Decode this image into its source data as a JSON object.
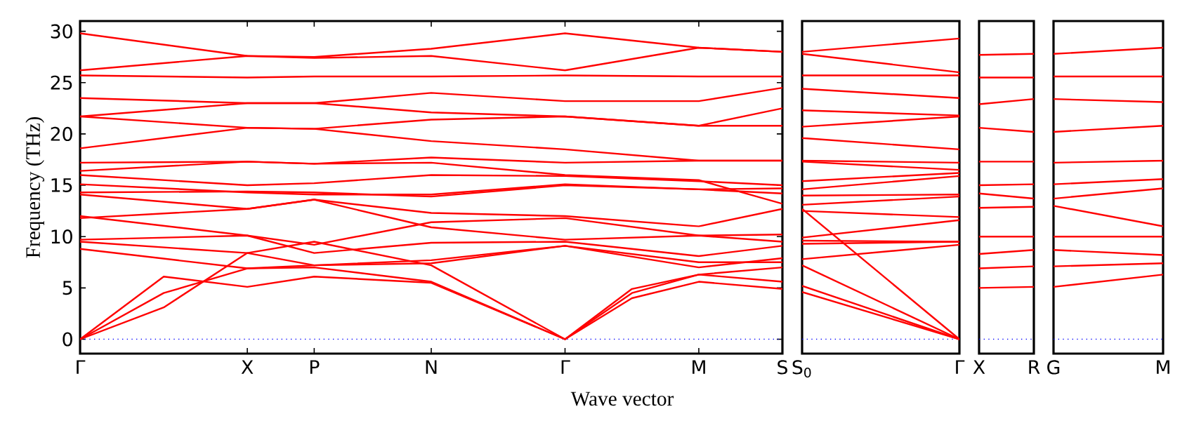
{
  "chart_data": [
    {
      "type": "line",
      "xlabel": "Wave vector",
      "ylabel": "Frequency (THz)",
      "ylim": [
        -1.4,
        31
      ],
      "yticks": [
        0,
        5,
        10,
        15,
        20,
        25,
        30
      ],
      "categories": [
        "Γ",
        null,
        null,
        null,
        null,
        null,
        null,
        null,
        null,
        null,
        "X",
        null,
        null,
        null,
        "P",
        null,
        null,
        null,
        null,
        null,
        null,
        "N",
        null,
        null,
        null,
        null,
        null,
        null,
        null,
        "Γ",
        null,
        null,
        null,
        null,
        null,
        null,
        null,
        "M",
        null,
        null,
        null,
        null,
        "S"
      ],
      "ref_lines": [
        {
          "axis": "y",
          "value": 0,
          "color": "#0000ff",
          "line_style": "dotted"
        }
      ],
      "series": [
        {
          "color": "#ff0000",
          "values": [
            29.8,
            null,
            null,
            null,
            null,
            null,
            null,
            null,
            null,
            null,
            27.6,
            null,
            null,
            null,
            27.5,
            null,
            null,
            null,
            null,
            null,
            null,
            28.3,
            null,
            null,
            null,
            null,
            null,
            null,
            null,
            29.8,
            null,
            null,
            null,
            null,
            null,
            null,
            null,
            28.4,
            null,
            null,
            null,
            null,
            28.0
          ]
        },
        {
          "color": "#ff0000",
          "values": [
            26.2,
            null,
            null,
            null,
            null,
            null,
            null,
            null,
            null,
            null,
            27.6,
            null,
            null,
            null,
            27.4,
            null,
            null,
            null,
            null,
            null,
            null,
            27.6,
            null,
            null,
            null,
            null,
            null,
            null,
            null,
            26.2,
            null,
            null,
            null,
            null,
            null,
            null,
            null,
            28.4,
            null,
            null,
            null,
            null,
            28.0
          ]
        },
        {
          "color": "#ff0000",
          "values": [
            25.7,
            null,
            null,
            null,
            null,
            null,
            null,
            null,
            null,
            null,
            25.5,
            null,
            null,
            null,
            25.6,
            null,
            null,
            null,
            null,
            null,
            null,
            25.6,
            null,
            null,
            null,
            null,
            null,
            null,
            null,
            25.7,
            null,
            null,
            null,
            null,
            null,
            null,
            null,
            25.6,
            null,
            null,
            null,
            null,
            25.6
          ]
        },
        {
          "color": "#ff0000",
          "values": [
            23.5,
            null,
            null,
            null,
            null,
            null,
            null,
            null,
            null,
            null,
            23.0,
            null,
            null,
            null,
            23.0,
            null,
            null,
            null,
            null,
            null,
            null,
            24.0,
            null,
            null,
            null,
            null,
            null,
            null,
            null,
            23.2,
            null,
            null,
            null,
            null,
            null,
            null,
            null,
            23.2,
            null,
            null,
            null,
            null,
            24.5
          ]
        },
        {
          "color": "#ff0000",
          "values": [
            21.7,
            null,
            null,
            null,
            null,
            null,
            null,
            null,
            null,
            null,
            23.0,
            null,
            null,
            null,
            23.0,
            null,
            null,
            null,
            null,
            null,
            null,
            22.1,
            null,
            null,
            null,
            null,
            null,
            null,
            null,
            21.7,
            null,
            null,
            null,
            null,
            null,
            null,
            null,
            20.8,
            null,
            null,
            null,
            null,
            22.5
          ]
        },
        {
          "color": "#ff0000",
          "values": [
            21.7,
            null,
            null,
            null,
            null,
            null,
            null,
            null,
            null,
            null,
            20.6,
            null,
            null,
            null,
            20.5,
            null,
            null,
            null,
            null,
            null,
            null,
            21.4,
            null,
            null,
            null,
            null,
            null,
            null,
            null,
            21.7,
            null,
            null,
            null,
            null,
            null,
            null,
            null,
            20.8,
            null,
            null,
            null,
            null,
            20.8
          ]
        },
        {
          "color": "#ff0000",
          "values": [
            18.6,
            null,
            null,
            null,
            null,
            null,
            null,
            null,
            null,
            null,
            20.6,
            null,
            null,
            null,
            20.5,
            null,
            null,
            null,
            null,
            null,
            null,
            19.3,
            null,
            null,
            null,
            null,
            null,
            null,
            null,
            18.5,
            null,
            null,
            null,
            null,
            null,
            null,
            null,
            17.4,
            null,
            null,
            null,
            null,
            17.4
          ]
        },
        {
          "color": "#ff0000",
          "values": [
            17.2,
            null,
            null,
            null,
            null,
            null,
            null,
            null,
            null,
            null,
            17.3,
            null,
            null,
            null,
            17.1,
            null,
            null,
            null,
            null,
            null,
            null,
            17.7,
            null,
            null,
            null,
            null,
            null,
            null,
            null,
            17.2,
            null,
            null,
            null,
            null,
            null,
            null,
            null,
            17.4,
            null,
            null,
            null,
            null,
            17.4
          ]
        },
        {
          "color": "#ff0000",
          "values": [
            16.4,
            null,
            null,
            null,
            null,
            null,
            null,
            null,
            null,
            null,
            17.3,
            null,
            null,
            null,
            17.1,
            null,
            null,
            null,
            null,
            null,
            null,
            17.2,
            null,
            null,
            null,
            null,
            null,
            null,
            null,
            16.0,
            null,
            null,
            null,
            null,
            null,
            null,
            null,
            15.5,
            null,
            null,
            null,
            null,
            13.2
          ]
        },
        {
          "color": "#ff0000",
          "values": [
            16.0,
            null,
            null,
            null,
            null,
            null,
            null,
            null,
            null,
            null,
            15.0,
            null,
            null,
            null,
            15.2,
            null,
            null,
            null,
            null,
            null,
            null,
            16.0,
            null,
            null,
            null,
            null,
            null,
            null,
            null,
            15.9,
            null,
            null,
            null,
            null,
            null,
            null,
            null,
            15.4,
            null,
            null,
            null,
            null,
            15.0
          ]
        },
        {
          "color": "#ff0000",
          "values": [
            15.1,
            null,
            null,
            null,
            null,
            null,
            null,
            null,
            null,
            null,
            14.3,
            null,
            null,
            null,
            14.1,
            null,
            null,
            null,
            null,
            null,
            null,
            14.1,
            null,
            null,
            null,
            null,
            null,
            null,
            null,
            15.1,
            null,
            null,
            null,
            null,
            null,
            null,
            null,
            14.6,
            null,
            null,
            null,
            null,
            14.7
          ]
        },
        {
          "color": "#ff0000",
          "values": [
            14.3,
            null,
            null,
            null,
            null,
            null,
            null,
            null,
            null,
            null,
            14.4,
            null,
            null,
            null,
            14.3,
            null,
            null,
            null,
            null,
            null,
            null,
            13.9,
            null,
            null,
            null,
            null,
            null,
            null,
            null,
            15.0,
            null,
            null,
            null,
            null,
            null,
            null,
            null,
            14.6,
            null,
            null,
            null,
            null,
            14.2
          ]
        },
        {
          "color": "#ff0000",
          "values": [
            14.1,
            null,
            null,
            null,
            null,
            null,
            null,
            null,
            null,
            null,
            12.7,
            null,
            null,
            null,
            13.6,
            null,
            null,
            null,
            null,
            null,
            null,
            12.3,
            null,
            null,
            null,
            null,
            null,
            null,
            null,
            12.0,
            null,
            null,
            null,
            null,
            null,
            null,
            null,
            11.0,
            null,
            null,
            null,
            null,
            12.7
          ]
        },
        {
          "color": "#ff0000",
          "values": [
            12.0,
            null,
            null,
            null,
            null,
            null,
            null,
            null,
            null,
            null,
            10.1,
            null,
            null,
            null,
            9.2,
            null,
            null,
            null,
            null,
            null,
            null,
            11.4,
            null,
            null,
            null,
            null,
            null,
            null,
            null,
            11.8,
            null,
            null,
            null,
            null,
            null,
            null,
            null,
            10.1,
            null,
            null,
            null,
            null,
            10.2
          ]
        },
        {
          "color": "#ff0000",
          "values": [
            11.8,
            null,
            null,
            null,
            null,
            null,
            null,
            null,
            null,
            null,
            12.7,
            null,
            null,
            null,
            13.6,
            null,
            null,
            null,
            null,
            null,
            null,
            10.9,
            null,
            null,
            null,
            null,
            null,
            null,
            null,
            9.7,
            null,
            null,
            null,
            null,
            null,
            null,
            null,
            10.1,
            null,
            null,
            null,
            null,
            9.5
          ]
        },
        {
          "color": "#ff0000",
          "values": [
            9.7,
            null,
            null,
            null,
            null,
            null,
            null,
            null,
            null,
            null,
            10.1,
            null,
            null,
            null,
            8.4,
            null,
            null,
            null,
            null,
            null,
            null,
            9.4,
            null,
            null,
            null,
            null,
            null,
            null,
            null,
            9.5,
            null,
            null,
            null,
            null,
            null,
            null,
            null,
            8.1,
            null,
            null,
            null,
            null,
            9.1
          ]
        },
        {
          "color": "#ff0000",
          "values": [
            9.5,
            null,
            null,
            null,
            null,
            null,
            null,
            null,
            null,
            null,
            8.4,
            null,
            null,
            null,
            7.2,
            null,
            null,
            null,
            null,
            null,
            null,
            7.7,
            null,
            null,
            null,
            null,
            null,
            null,
            null,
            9.1,
            null,
            null,
            null,
            null,
            null,
            null,
            null,
            7.0,
            null,
            null,
            null,
            null,
            7.9
          ]
        },
        {
          "color": "#ff0000",
          "values": [
            8.8,
            null,
            null,
            null,
            null,
            null,
            null,
            null,
            null,
            null,
            6.9,
            null,
            null,
            null,
            7.2,
            null,
            null,
            null,
            null,
            null,
            null,
            7.4,
            null,
            null,
            null,
            null,
            null,
            null,
            null,
            9.1,
            null,
            null,
            null,
            null,
            null,
            null,
            null,
            7.5,
            null,
            null,
            null,
            null,
            7.5
          ]
        },
        {
          "color": "#ff0000",
          "values": [
            0,
            null,
            null,
            null,
            null,
            6.1,
            null,
            null,
            null,
            null,
            5.1,
            null,
            null,
            null,
            6.1,
            null,
            null,
            null,
            null,
            null,
            null,
            5.5,
            null,
            null,
            null,
            null,
            null,
            null,
            null,
            0,
            null,
            null,
            null,
            4.9,
            null,
            null,
            null,
            6.3,
            null,
            null,
            null,
            null,
            5.6
          ]
        },
        {
          "color": "#ff0000",
          "values": [
            0,
            null,
            null,
            null,
            null,
            4.5,
            null,
            null,
            null,
            null,
            6.9,
            null,
            null,
            null,
            7.0,
            null,
            null,
            null,
            null,
            null,
            null,
            5.6,
            null,
            null,
            null,
            null,
            null,
            null,
            null,
            0,
            null,
            null,
            null,
            4.5,
            null,
            null,
            null,
            6.3,
            null,
            null,
            null,
            null,
            7.0
          ]
        },
        {
          "color": "#ff0000",
          "values": [
            0,
            null,
            null,
            null,
            null,
            3.1,
            null,
            null,
            null,
            null,
            8.4,
            null,
            null,
            null,
            9.5,
            null,
            null,
            null,
            null,
            null,
            null,
            7.2,
            null,
            null,
            null,
            null,
            null,
            null,
            null,
            0,
            null,
            null,
            null,
            4.0,
            null,
            null,
            null,
            5.6,
            null,
            null,
            null,
            null,
            4.9
          ]
        }
      ]
    },
    {
      "type": "line",
      "tick_labels": "x",
      "ylim": [
        -1.4,
        31
      ],
      "categories": [
        "S$_{0}$",
        null,
        null,
        null,
        null,
        null,
        null,
        null,
        null,
        "Γ"
      ],
      "ref_lines": [
        {
          "axis": "y",
          "value": 0,
          "color": "#0000ff",
          "line_style": "dotted"
        }
      ],
      "series": [
        {
          "color": "#ff0000",
          "values": [
            28.0,
            null,
            null,
            null,
            null,
            null,
            null,
            null,
            null,
            29.3
          ]
        },
        {
          "color": "#ff0000",
          "values": [
            27.8,
            null,
            null,
            null,
            null,
            null,
            null,
            null,
            null,
            26.0
          ]
        },
        {
          "color": "#ff0000",
          "values": [
            25.7,
            null,
            null,
            null,
            null,
            null,
            null,
            null,
            null,
            25.7
          ]
        },
        {
          "color": "#ff0000",
          "values": [
            24.4,
            null,
            null,
            null,
            null,
            null,
            null,
            null,
            null,
            23.5
          ]
        },
        {
          "color": "#ff0000",
          "values": [
            22.3,
            null,
            null,
            null,
            null,
            null,
            null,
            null,
            null,
            21.8
          ]
        },
        {
          "color": "#ff0000",
          "values": [
            20.7,
            null,
            null,
            null,
            null,
            null,
            null,
            null,
            null,
            21.7
          ]
        },
        {
          "color": "#ff0000",
          "values": [
            19.6,
            null,
            null,
            null,
            null,
            null,
            null,
            null,
            null,
            18.5
          ]
        },
        {
          "color": "#ff0000",
          "values": [
            17.4,
            null,
            null,
            null,
            null,
            null,
            null,
            null,
            null,
            17.2
          ]
        },
        {
          "color": "#ff0000",
          "values": [
            17.3,
            null,
            null,
            null,
            null,
            null,
            null,
            null,
            null,
            16.5
          ]
        },
        {
          "color": "#ff0000",
          "values": [
            15.4,
            null,
            null,
            null,
            null,
            null,
            null,
            null,
            null,
            16.2
          ]
        },
        {
          "color": "#ff0000",
          "values": [
            14.6,
            null,
            null,
            null,
            null,
            null,
            null,
            null,
            null,
            15.9
          ]
        },
        {
          "color": "#ff0000",
          "values": [
            14.0,
            null,
            null,
            null,
            null,
            null,
            null,
            null,
            null,
            14.1
          ]
        },
        {
          "color": "#ff0000",
          "values": [
            13.1,
            null,
            null,
            null,
            null,
            null,
            null,
            null,
            null,
            13.9
          ]
        },
        {
          "color": "#ff0000",
          "values": [
            12.5,
            null,
            null,
            null,
            null,
            null,
            null,
            null,
            null,
            11.9
          ]
        },
        {
          "color": "#ff0000",
          "values": [
            9.9,
            null,
            null,
            null,
            null,
            null,
            null,
            null,
            null,
            11.6
          ]
        },
        {
          "color": "#ff0000",
          "values": [
            9.6,
            null,
            null,
            null,
            null,
            null,
            null,
            null,
            null,
            9.5
          ]
        },
        {
          "color": "#ff0000",
          "values": [
            9.3,
            null,
            null,
            null,
            null,
            null,
            null,
            null,
            null,
            9.5
          ]
        },
        {
          "color": "#ff0000",
          "values": [
            7.8,
            null,
            null,
            null,
            null,
            null,
            null,
            null,
            null,
            9.2
          ]
        },
        {
          "color": "#ff0000",
          "values": [
            12.7,
            null,
            null,
            null,
            null,
            null,
            null,
            null,
            null,
            0
          ]
        },
        {
          "color": "#ff0000",
          "values": [
            7.2,
            null,
            null,
            null,
            null,
            null,
            null,
            null,
            null,
            0
          ]
        },
        {
          "color": "#ff0000",
          "values": [
            5.2,
            null,
            null,
            null,
            null,
            null,
            null,
            null,
            null,
            0
          ]
        },
        {
          "color": "#ff0000",
          "values": [
            4.6,
            null,
            null,
            null,
            null,
            null,
            null,
            null,
            null,
            0
          ]
        }
      ]
    },
    {
      "type": "line",
      "tick_labels": "x",
      "ylim": [
        -1.4,
        31
      ],
      "categories": [
        "X",
        null,
        null,
        null,
        null,
        "R"
      ],
      "ref_lines": [
        {
          "axis": "y",
          "value": 0,
          "color": "#0000ff",
          "line_style": "dotted"
        }
      ],
      "series": [
        {
          "color": "#ff0000",
          "values": [
            27.7,
            null,
            null,
            null,
            null,
            27.8
          ]
        },
        {
          "color": "#ff0000",
          "values": [
            25.5,
            null,
            null,
            null,
            null,
            25.5
          ]
        },
        {
          "color": "#ff0000",
          "values": [
            22.9,
            null,
            null,
            null,
            null,
            23.4
          ]
        },
        {
          "color": "#ff0000",
          "values": [
            20.6,
            null,
            null,
            null,
            null,
            20.2
          ]
        },
        {
          "color": "#ff0000",
          "values": [
            17.3,
            null,
            null,
            null,
            null,
            17.3
          ]
        },
        {
          "color": "#ff0000",
          "values": [
            15.0,
            null,
            null,
            null,
            null,
            15.1
          ]
        },
        {
          "color": "#ff0000",
          "values": [
            14.2,
            null,
            null,
            null,
            null,
            13.7
          ]
        },
        {
          "color": "#ff0000",
          "values": [
            12.8,
            null,
            null,
            null,
            null,
            12.9
          ]
        },
        {
          "color": "#ff0000",
          "values": [
            10.0,
            null,
            null,
            null,
            null,
            10.0
          ]
        },
        {
          "color": "#ff0000",
          "values": [
            8.3,
            null,
            null,
            null,
            null,
            8.7
          ]
        },
        {
          "color": "#ff0000",
          "values": [
            6.9,
            null,
            null,
            null,
            null,
            7.1
          ]
        },
        {
          "color": "#ff0000",
          "values": [
            5.0,
            null,
            null,
            null,
            null,
            5.1
          ]
        }
      ]
    },
    {
      "type": "line",
      "tick_labels": "x",
      "ylim": [
        -1.4,
        31
      ],
      "categories": [
        "G",
        null,
        null,
        null,
        null,
        null,
        null,
        "M"
      ],
      "ref_lines": [
        {
          "axis": "y",
          "value": 0,
          "color": "#0000ff",
          "line_style": "dotted"
        }
      ],
      "series": [
        {
          "color": "#ff0000",
          "values": [
            27.8,
            null,
            null,
            null,
            null,
            null,
            null,
            28.4
          ]
        },
        {
          "color": "#ff0000",
          "values": [
            25.6,
            null,
            null,
            null,
            null,
            null,
            null,
            25.6
          ]
        },
        {
          "color": "#ff0000",
          "values": [
            23.4,
            null,
            null,
            null,
            null,
            null,
            null,
            23.1
          ]
        },
        {
          "color": "#ff0000",
          "values": [
            20.2,
            null,
            null,
            null,
            null,
            null,
            null,
            20.8
          ]
        },
        {
          "color": "#ff0000",
          "values": [
            17.2,
            null,
            null,
            null,
            null,
            null,
            null,
            17.4
          ]
        },
        {
          "color": "#ff0000",
          "values": [
            15.1,
            null,
            null,
            null,
            null,
            null,
            null,
            15.6
          ]
        },
        {
          "color": "#ff0000",
          "values": [
            13.7,
            null,
            null,
            null,
            null,
            null,
            null,
            14.7
          ]
        },
        {
          "color": "#ff0000",
          "values": [
            13.0,
            null,
            null,
            null,
            null,
            null,
            null,
            11.0
          ]
        },
        {
          "color": "#ff0000",
          "values": [
            10.0,
            null,
            null,
            null,
            null,
            null,
            null,
            10.0
          ]
        },
        {
          "color": "#ff0000",
          "values": [
            8.7,
            null,
            null,
            null,
            null,
            null,
            null,
            8.2
          ]
        },
        {
          "color": "#ff0000",
          "values": [
            7.1,
            null,
            null,
            null,
            null,
            null,
            null,
            7.4
          ]
        },
        {
          "color": "#ff0000",
          "values": [
            5.1,
            null,
            null,
            null,
            null,
            null,
            null,
            6.3
          ]
        }
      ]
    }
  ]
}
